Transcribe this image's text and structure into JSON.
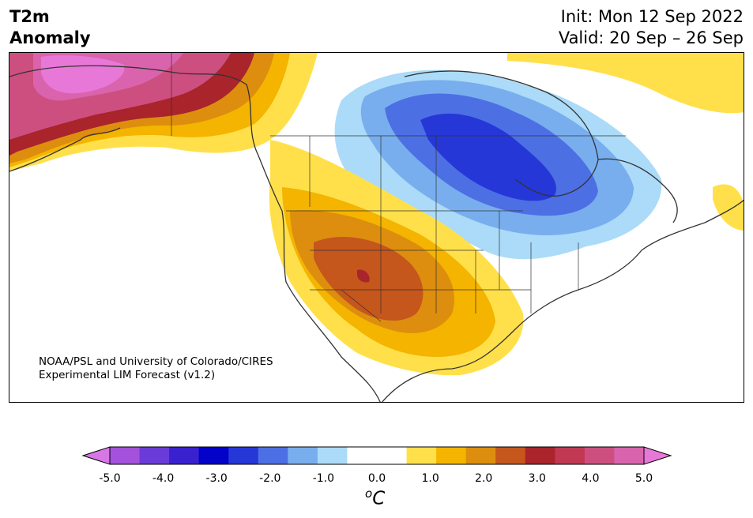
{
  "header": {
    "title_line1": "T2m",
    "title_line2": "Anomaly",
    "init_text": "Init: Mon 12 Sep 2022",
    "valid_text": "Valid: 20 Sep – 26 Sep"
  },
  "credit": {
    "line1": "NOAA/PSL and University of Colorado/CIRES",
    "line2": "Experimental LIM Forecast (v1.2)"
  },
  "colorbar": {
    "ticks": [
      "-5.0",
      "-4.0",
      "-3.0",
      "-2.0",
      "-1.0",
      "0.0",
      "1.0",
      "2.0",
      "3.0",
      "4.0",
      "5.0"
    ],
    "unit_base": "C",
    "unit_sup": "o",
    "colors": [
      "#d777e5",
      "#a452dc",
      "#6a3bd8",
      "#3a21d0",
      "#0302c9",
      "#2637d8",
      "#4d6fe4",
      "#78aeee",
      "#abdbf8",
      "#ffffff",
      "#ffffff",
      "#ffe04a",
      "#f4b400",
      "#dd8e0e",
      "#c5561c",
      "#a9242b",
      "#c03852",
      "#cd4f80",
      "#d964ad",
      "#e878d7"
    ]
  },
  "map_regions": [
    {
      "name": "warm-alaska",
      "color": "#cd4f80"
    },
    {
      "name": "warm-west",
      "color": "#c5561c"
    },
    {
      "name": "cool-central-canada",
      "color": "#2637d8"
    }
  ]
}
